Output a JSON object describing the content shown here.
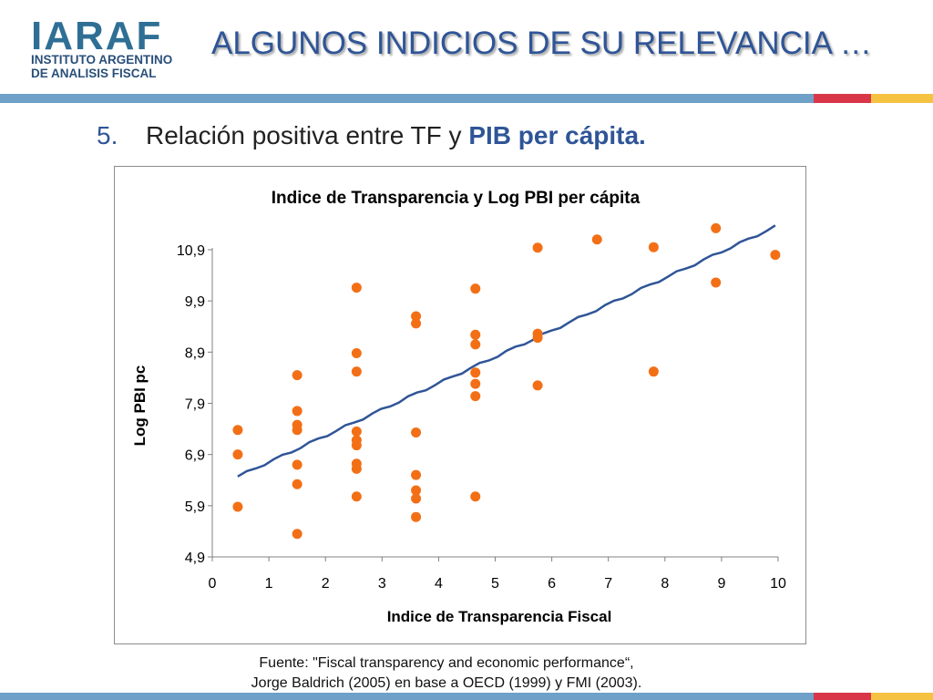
{
  "logo": {
    "mark": "IARAF",
    "line1": "INSTITUTO ARGENTINO",
    "line2": "DE ANALISIS FISCAL"
  },
  "slide_title": "ALGUNOS INDICIOS DE SU RELEVANCIA …",
  "bullet": {
    "number": "5.",
    "text": "Relación positiva entre TF y ",
    "highlight": "PIB per cápita."
  },
  "source": {
    "line1": "Fuente: \"Fiscal transparency and economic performance“,",
    "line2": "Jorge Baldrich (2005) en base a OECD (1999) y FMI (2003)."
  },
  "colors": {
    "points": "#f36f16",
    "trendline": "#2f5597",
    "title_blue": "#2f5597",
    "band_blue": "#6ea0c8",
    "band_red": "#d9364a",
    "band_yellow": "#f5c242"
  },
  "chart_data": {
    "type": "scatter",
    "title": "Indice de Transparencia y Log PBI per cápita",
    "xlabel": "Indice de Transparencia Fiscal",
    "ylabel": "Log PBI pc",
    "xlim": [
      0,
      10
    ],
    "ylim": [
      4.9,
      10.9
    ],
    "x_ticks": [
      "0",
      "1",
      "2",
      "3",
      "4",
      "5",
      "6",
      "7",
      "8",
      "9",
      "10"
    ],
    "y_ticks": [
      "10,9",
      "9,9",
      "8,9",
      "7,9",
      "6,9",
      "5,9",
      "4,9"
    ],
    "y_tick_values": [
      10.9,
      9.9,
      8.9,
      7.9,
      6.9,
      5.9,
      4.9
    ],
    "trendline": {
      "x": [
        0.45,
        9.95
      ],
      "y": [
        6.47,
        11.35
      ]
    },
    "points": [
      {
        "x": 0.45,
        "y": 7.38
      },
      {
        "x": 0.45,
        "y": 6.9
      },
      {
        "x": 0.45,
        "y": 5.88
      },
      {
        "x": 1.5,
        "y": 8.45
      },
      {
        "x": 1.5,
        "y": 7.75
      },
      {
        "x": 1.5,
        "y": 7.48
      },
      {
        "x": 1.5,
        "y": 7.38
      },
      {
        "x": 1.5,
        "y": 6.7
      },
      {
        "x": 1.5,
        "y": 6.32
      },
      {
        "x": 1.5,
        "y": 5.35
      },
      {
        "x": 2.55,
        "y": 10.16
      },
      {
        "x": 2.55,
        "y": 8.88
      },
      {
        "x": 2.55,
        "y": 8.52
      },
      {
        "x": 2.55,
        "y": 7.35
      },
      {
        "x": 2.55,
        "y": 7.18
      },
      {
        "x": 2.55,
        "y": 7.08
      },
      {
        "x": 2.55,
        "y": 6.72
      },
      {
        "x": 2.55,
        "y": 6.62
      },
      {
        "x": 2.55,
        "y": 6.08
      },
      {
        "x": 3.6,
        "y": 9.6
      },
      {
        "x": 3.6,
        "y": 9.46
      },
      {
        "x": 3.6,
        "y": 7.33
      },
      {
        "x": 3.6,
        "y": 6.5
      },
      {
        "x": 3.6,
        "y": 6.2
      },
      {
        "x": 3.6,
        "y": 6.04
      },
      {
        "x": 3.6,
        "y": 5.68
      },
      {
        "x": 4.65,
        "y": 10.14
      },
      {
        "x": 4.65,
        "y": 9.24
      },
      {
        "x": 4.65,
        "y": 9.05
      },
      {
        "x": 4.65,
        "y": 8.5
      },
      {
        "x": 4.65,
        "y": 8.28
      },
      {
        "x": 4.65,
        "y": 8.04
      },
      {
        "x": 4.65,
        "y": 6.08
      },
      {
        "x": 5.75,
        "y": 10.94
      },
      {
        "x": 5.75,
        "y": 9.26
      },
      {
        "x": 5.75,
        "y": 9.18
      },
      {
        "x": 5.75,
        "y": 8.25
      },
      {
        "x": 6.8,
        "y": 11.1
      },
      {
        "x": 7.8,
        "y": 10.95
      },
      {
        "x": 7.8,
        "y": 8.52
      },
      {
        "x": 8.9,
        "y": 11.32
      },
      {
        "x": 8.9,
        "y": 10.26
      },
      {
        "x": 9.95,
        "y": 10.8
      }
    ]
  }
}
